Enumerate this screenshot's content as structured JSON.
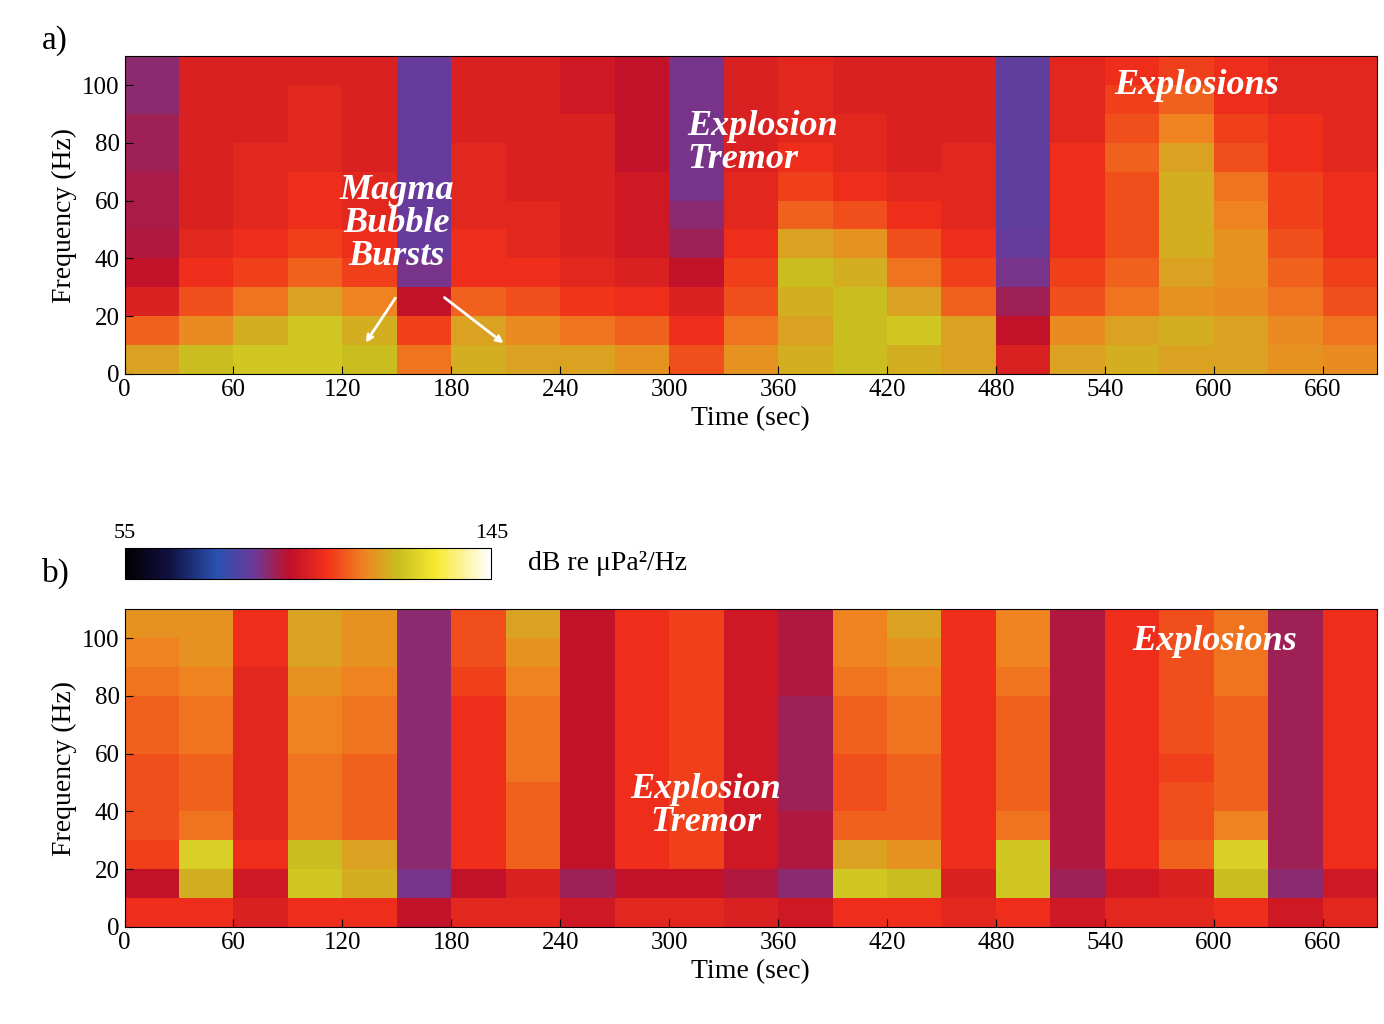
{
  "chart_data": [
    {
      "type": "heatmap",
      "title": "a)",
      "x_label": "Time (sec)",
      "y_label": "Frequency (Hz)",
      "xlim": [
        0,
        690
      ],
      "ylim": [
        0,
        110
      ],
      "xticks": [
        0,
        60,
        120,
        180,
        240,
        300,
        360,
        420,
        480,
        540,
        600,
        660
      ],
      "yticks": [
        0,
        20,
        40,
        60,
        80,
        100
      ],
      "x": [
        0,
        30,
        60,
        90,
        120,
        150,
        180,
        210,
        240,
        270,
        300,
        330,
        360,
        390,
        420,
        450,
        480,
        510,
        540,
        570,
        600,
        630,
        660,
        690
      ],
      "y": [
        0,
        10,
        20,
        30,
        40,
        50,
        60,
        70,
        80,
        90,
        100,
        110
      ],
      "cells": [
        [
          118,
          122,
          124,
          124,
          122,
          112,
          120,
          118,
          118,
          116,
          108,
          116,
          120,
          122,
          120,
          118,
          100,
          118,
          120,
          118,
          118,
          116,
          115
        ],
        [
          110,
          115,
          120,
          124,
          120,
          106,
          118,
          115,
          112,
          110,
          104,
          112,
          118,
          122,
          124,
          118,
          96,
          115,
          118,
          120,
          118,
          115,
          112
        ],
        [
          100,
          108,
          112,
          118,
          114,
          96,
          110,
          108,
          105,
          104,
          100,
          108,
          120,
          122,
          118,
          110,
          92,
          108,
          112,
          116,
          115,
          112,
          108
        ],
        [
          96,
          104,
          106,
          110,
          106,
          88,
          104,
          104,
          102,
          100,
          96,
          106,
          122,
          120,
          112,
          106,
          88,
          106,
          110,
          118,
          116,
          110,
          106
        ],
        [
          94,
          102,
          104,
          106,
          104,
          86,
          104,
          102,
          100,
          98,
          92,
          104,
          118,
          116,
          108,
          104,
          86,
          104,
          108,
          120,
          116,
          108,
          104
        ],
        [
          93,
          100,
          102,
          104,
          102,
          86,
          102,
          102,
          100,
          98,
          90,
          102,
          110,
          108,
          104,
          102,
          85,
          104,
          108,
          120,
          114,
          106,
          104
        ],
        [
          93,
          100,
          102,
          104,
          102,
          86,
          102,
          100,
          100,
          98,
          88,
          102,
          106,
          104,
          102,
          102,
          85,
          104,
          108,
          120,
          112,
          106,
          104
        ],
        [
          92,
          100,
          102,
          102,
          100,
          86,
          102,
          100,
          100,
          96,
          88,
          100,
          104,
          102,
          100,
          102,
          85,
          104,
          110,
          118,
          108,
          104,
          102
        ],
        [
          92,
          100,
          100,
          102,
          100,
          86,
          100,
          100,
          100,
          96,
          88,
          100,
          102,
          102,
          100,
          100,
          85,
          102,
          108,
          114,
          106,
          104,
          102
        ],
        [
          90,
          100,
          100,
          102,
          100,
          86,
          100,
          100,
          98,
          96,
          88,
          100,
          102,
          100,
          100,
          100,
          85,
          102,
          106,
          110,
          104,
          102,
          102
        ],
        [
          90,
          100,
          100,
          100,
          100,
          86,
          100,
          100,
          98,
          96,
          88,
          100,
          102,
          100,
          100,
          100,
          85,
          102,
          104,
          106,
          104,
          102,
          102
        ]
      ],
      "annotations": [
        "Magma\nBubble\nBursts",
        "Explosion\nTremor",
        "Explosions"
      ]
    },
    {
      "type": "heatmap",
      "title": "b)",
      "x_label": "Time (sec)",
      "y_label": "Frequency (Hz)",
      "xlim": [
        0,
        690
      ],
      "ylim": [
        0,
        110
      ],
      "xticks": [
        0,
        60,
        120,
        180,
        240,
        300,
        360,
        420,
        480,
        540,
        600,
        660
      ],
      "yticks": [
        0,
        20,
        40,
        60,
        80,
        100
      ],
      "x": [
        0,
        30,
        60,
        90,
        120,
        150,
        180,
        210,
        240,
        270,
        300,
        330,
        360,
        390,
        420,
        450,
        480,
        510,
        540,
        570,
        600,
        630,
        660,
        690
      ],
      "y": [
        0,
        10,
        20,
        30,
        40,
        50,
        60,
        70,
        80,
        90,
        100,
        110
      ],
      "cells": [
        [
          104,
          104,
          100,
          104,
          104,
          96,
          102,
          102,
          98,
          102,
          102,
          100,
          98,
          104,
          104,
          102,
          104,
          98,
          102,
          102,
          104,
          98,
          102
        ],
        [
          96,
          120,
          98,
          124,
          120,
          88,
          96,
          100,
          92,
          96,
          96,
          94,
          90,
          124,
          122,
          100,
          124,
          92,
          98,
          100,
          122,
          90,
          98
        ],
        [
          106,
          126,
          104,
          122,
          118,
          90,
          104,
          110,
          96,
          104,
          106,
          98,
          94,
          118,
          116,
          104,
          124,
          94,
          104,
          110,
          126,
          92,
          104
        ],
        [
          108,
          112,
          102,
          112,
          110,
          90,
          104,
          110,
          96,
          104,
          106,
          98,
          94,
          110,
          110,
          104,
          112,
          94,
          104,
          108,
          114,
          92,
          104
        ],
        [
          108,
          110,
          102,
          112,
          110,
          90,
          104,
          110,
          96,
          104,
          106,
          98,
          92,
          108,
          110,
          104,
          110,
          94,
          104,
          108,
          110,
          92,
          104
        ],
        [
          108,
          110,
          102,
          112,
          110,
          90,
          104,
          112,
          96,
          104,
          106,
          98,
          92,
          108,
          110,
          104,
          110,
          94,
          104,
          106,
          110,
          92,
          104
        ],
        [
          110,
          112,
          102,
          114,
          112,
          90,
          104,
          112,
          96,
          104,
          106,
          98,
          92,
          110,
          112,
          104,
          110,
          94,
          104,
          108,
          110,
          92,
          104
        ],
        [
          110,
          112,
          102,
          114,
          112,
          90,
          104,
          112,
          96,
          104,
          106,
          98,
          92,
          110,
          112,
          104,
          110,
          94,
          104,
          108,
          110,
          92,
          104
        ],
        [
          112,
          114,
          102,
          116,
          114,
          90,
          106,
          114,
          96,
          104,
          106,
          98,
          94,
          112,
          114,
          104,
          112,
          94,
          104,
          108,
          112,
          92,
          104
        ],
        [
          114,
          116,
          104,
          118,
          116,
          90,
          108,
          116,
          96,
          104,
          106,
          98,
          94,
          114,
          116,
          104,
          114,
          94,
          104,
          108,
          112,
          92,
          104
        ],
        [
          116,
          116,
          104,
          118,
          116,
          90,
          108,
          118,
          96,
          104,
          106,
          98,
          94,
          114,
          118,
          104,
          114,
          94,
          104,
          108,
          112,
          92,
          104
        ]
      ],
      "annotations": [
        "Explosion\nTremor",
        "Explosions"
      ],
      "colorbar": {
        "label": "dB re μPa²/Hz",
        "range": [
          55,
          145
        ],
        "ticks": [
          55,
          145
        ]
      }
    }
  ]
}
